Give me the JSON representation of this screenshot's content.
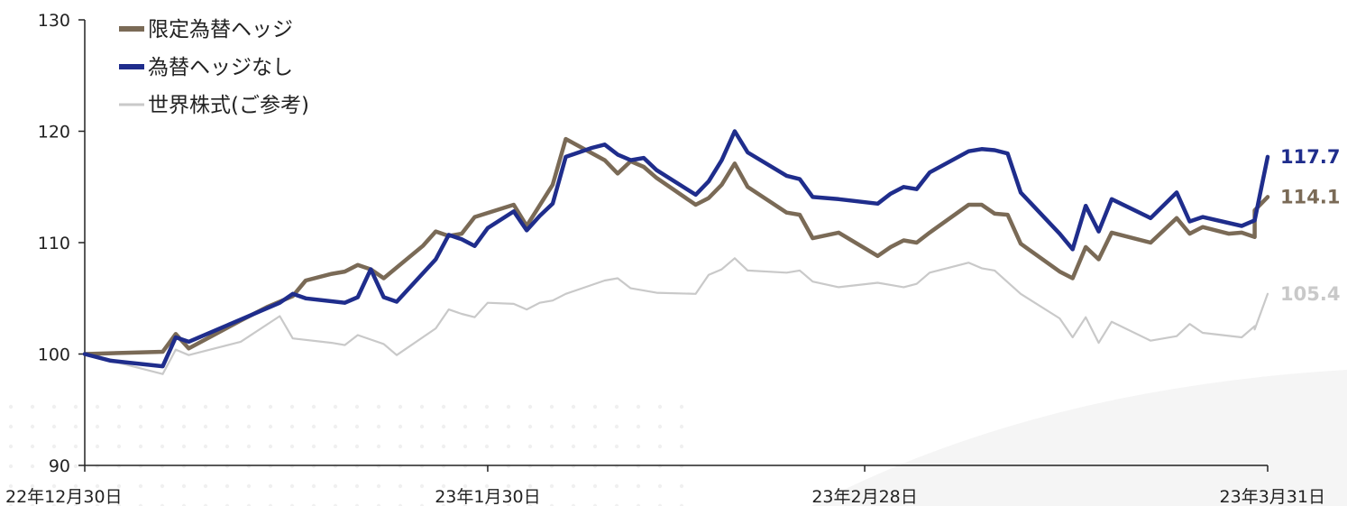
{
  "chart_data": {
    "type": "line",
    "ylim": [
      90,
      130
    ],
    "y_ticks": [
      "90",
      "100",
      "110",
      "120",
      "130"
    ],
    "x_range": [
      "2022-12-30",
      "2023-03-31"
    ],
    "x_ticks": [
      {
        "date": "2022-12-30",
        "label": "22年12月30日"
      },
      {
        "date": "2023-01-30",
        "label": "23年1月30日"
      },
      {
        "date": "2023-02-28",
        "label": "23年2月28日"
      },
      {
        "date": "2023-03-31",
        "label": "23年3月31日"
      }
    ],
    "grid": false,
    "legend_position": "top-left",
    "series": [
      {
        "name": "限定為替ヘッジ",
        "color": "#7a6a56",
        "end_label": "114.1",
        "points": [
          [
            "2022-12-30",
            100.0
          ],
          [
            "2023-01-05",
            100.2
          ],
          [
            "2023-01-06",
            101.8
          ],
          [
            "2023-01-07",
            100.5
          ],
          [
            "2023-01-11",
            103.0
          ],
          [
            "2023-01-13",
            104.2
          ],
          [
            "2023-01-15",
            105.2
          ],
          [
            "2023-01-16",
            106.6
          ],
          [
            "2023-01-18",
            107.2
          ],
          [
            "2023-01-19",
            107.4
          ],
          [
            "2023-01-20",
            108.0
          ],
          [
            "2023-01-21",
            107.6
          ],
          [
            "2023-01-22",
            106.8
          ],
          [
            "2023-01-25",
            109.7
          ],
          [
            "2023-01-26",
            111.0
          ],
          [
            "2023-01-27",
            110.6
          ],
          [
            "2023-01-28",
            110.8
          ],
          [
            "2023-01-29",
            112.3
          ],
          [
            "2023-02-01",
            113.4
          ],
          [
            "2023-02-02",
            111.5
          ],
          [
            "2023-02-04",
            115.2
          ],
          [
            "2023-02-05",
            119.3
          ],
          [
            "2023-02-08",
            117.4
          ],
          [
            "2023-02-09",
            116.2
          ],
          [
            "2023-02-10",
            117.3
          ],
          [
            "2023-02-11",
            116.8
          ],
          [
            "2023-02-12",
            115.8
          ],
          [
            "2023-02-15",
            113.4
          ],
          [
            "2023-02-16",
            114.0
          ],
          [
            "2023-02-17",
            115.2
          ],
          [
            "2023-02-18",
            117.1
          ],
          [
            "2023-02-19",
            115.0
          ],
          [
            "2023-02-22",
            112.7
          ],
          [
            "2023-02-23",
            112.5
          ],
          [
            "2023-02-24",
            110.4
          ],
          [
            "2023-02-26",
            110.9
          ],
          [
            "2023-03-01",
            108.8
          ],
          [
            "2023-03-02",
            109.6
          ],
          [
            "2023-03-03",
            110.2
          ],
          [
            "2023-03-04",
            110.0
          ],
          [
            "2023-03-05",
            110.9
          ],
          [
            "2023-03-08",
            113.4
          ],
          [
            "2023-03-09",
            113.4
          ],
          [
            "2023-03-10",
            112.6
          ],
          [
            "2023-03-11",
            112.5
          ],
          [
            "2023-03-12",
            109.9
          ],
          [
            "2023-03-15",
            107.4
          ],
          [
            "2023-03-16",
            106.8
          ],
          [
            "2023-03-17",
            109.6
          ],
          [
            "2023-03-18",
            108.5
          ],
          [
            "2023-03-19",
            110.9
          ],
          [
            "2023-03-22",
            110.0
          ],
          [
            "2023-03-24",
            112.2
          ],
          [
            "2023-03-25",
            110.8
          ],
          [
            "2023-03-26",
            111.4
          ],
          [
            "2023-03-28",
            110.8
          ],
          [
            "2023-03-29",
            110.9
          ],
          [
            "2023-03-30",
            110.5
          ],
          [
            "2023-03-30",
            112.9
          ],
          [
            "2023-03-31",
            114.1
          ]
        ]
      },
      {
        "name": "為替ヘッジなし",
        "color": "#1f2d8c",
        "end_label": "117.7",
        "points": [
          [
            "2022-12-30",
            100.0
          ],
          [
            "2023-01-01",
            99.4
          ],
          [
            "2023-01-05",
            98.9
          ],
          [
            "2023-01-06",
            101.5
          ],
          [
            "2023-01-07",
            101.1
          ],
          [
            "2023-01-10",
            102.6
          ],
          [
            "2023-01-14",
            104.6
          ],
          [
            "2023-01-15",
            105.4
          ],
          [
            "2023-01-16",
            105.0
          ],
          [
            "2023-01-19",
            104.6
          ],
          [
            "2023-01-20",
            105.1
          ],
          [
            "2023-01-21",
            107.6
          ],
          [
            "2023-01-22",
            105.1
          ],
          [
            "2023-01-23",
            104.7
          ],
          [
            "2023-01-26",
            108.5
          ],
          [
            "2023-01-27",
            110.7
          ],
          [
            "2023-01-28",
            110.3
          ],
          [
            "2023-01-29",
            109.7
          ],
          [
            "2023-01-30",
            111.3
          ],
          [
            "2023-02-01",
            112.8
          ],
          [
            "2023-02-02",
            111.1
          ],
          [
            "2023-02-03",
            112.4
          ],
          [
            "2023-02-04",
            113.5
          ],
          [
            "2023-02-05",
            117.7
          ],
          [
            "2023-02-07",
            118.5
          ],
          [
            "2023-02-08",
            118.8
          ],
          [
            "2023-02-09",
            117.9
          ],
          [
            "2023-02-10",
            117.4
          ],
          [
            "2023-02-11",
            117.6
          ],
          [
            "2023-02-12",
            116.5
          ],
          [
            "2023-02-15",
            114.3
          ],
          [
            "2023-02-16",
            115.5
          ],
          [
            "2023-02-17",
            117.4
          ],
          [
            "2023-02-18",
            120.0
          ],
          [
            "2023-02-19",
            118.1
          ],
          [
            "2023-02-22",
            116.0
          ],
          [
            "2023-02-23",
            115.7
          ],
          [
            "2023-02-24",
            114.1
          ],
          [
            "2023-02-26",
            113.9
          ],
          [
            "2023-03-01",
            113.5
          ],
          [
            "2023-03-02",
            114.4
          ],
          [
            "2023-03-03",
            115.0
          ],
          [
            "2023-03-04",
            114.8
          ],
          [
            "2023-03-05",
            116.3
          ],
          [
            "2023-03-08",
            118.2
          ],
          [
            "2023-03-09",
            118.4
          ],
          [
            "2023-03-10",
            118.3
          ],
          [
            "2023-03-11",
            118.0
          ],
          [
            "2023-03-12",
            114.5
          ],
          [
            "2023-03-15",
            110.8
          ],
          [
            "2023-03-16",
            109.4
          ],
          [
            "2023-03-17",
            113.3
          ],
          [
            "2023-03-18",
            111.0
          ],
          [
            "2023-03-19",
            113.9
          ],
          [
            "2023-03-22",
            112.2
          ],
          [
            "2023-03-24",
            114.5
          ],
          [
            "2023-03-25",
            111.9
          ],
          [
            "2023-03-26",
            112.3
          ],
          [
            "2023-03-29",
            111.5
          ],
          [
            "2023-03-30",
            112.0
          ],
          [
            "2023-03-31",
            117.7
          ]
        ]
      },
      {
        "name": "世界株式(ご参考)",
        "color": "#c9c9c9",
        "end_label": "105.4",
        "points": [
          [
            "2022-12-30",
            100.0
          ],
          [
            "2023-01-05",
            98.2
          ],
          [
            "2023-01-06",
            100.4
          ],
          [
            "2023-01-07",
            99.9
          ],
          [
            "2023-01-11",
            101.1
          ],
          [
            "2023-01-14",
            103.4
          ],
          [
            "2023-01-15",
            101.4
          ],
          [
            "2023-01-18",
            101.0
          ],
          [
            "2023-01-19",
            100.8
          ],
          [
            "2023-01-20",
            101.7
          ],
          [
            "2023-01-22",
            100.9
          ],
          [
            "2023-01-23",
            99.9
          ],
          [
            "2023-01-26",
            102.3
          ],
          [
            "2023-01-27",
            104.0
          ],
          [
            "2023-01-28",
            103.6
          ],
          [
            "2023-01-29",
            103.3
          ],
          [
            "2023-01-30",
            104.6
          ],
          [
            "2023-02-01",
            104.5
          ],
          [
            "2023-02-02",
            104.0
          ],
          [
            "2023-02-03",
            104.6
          ],
          [
            "2023-02-04",
            104.8
          ],
          [
            "2023-02-05",
            105.4
          ],
          [
            "2023-02-08",
            106.6
          ],
          [
            "2023-02-09",
            106.8
          ],
          [
            "2023-02-10",
            105.9
          ],
          [
            "2023-02-11",
            105.7
          ],
          [
            "2023-02-12",
            105.5
          ],
          [
            "2023-02-15",
            105.4
          ],
          [
            "2023-02-16",
            107.1
          ],
          [
            "2023-02-17",
            107.6
          ],
          [
            "2023-02-18",
            108.6
          ],
          [
            "2023-02-19",
            107.5
          ],
          [
            "2023-02-22",
            107.3
          ],
          [
            "2023-02-23",
            107.5
          ],
          [
            "2023-02-24",
            106.5
          ],
          [
            "2023-02-26",
            106.0
          ],
          [
            "2023-03-01",
            106.4
          ],
          [
            "2023-03-02",
            106.2
          ],
          [
            "2023-03-03",
            106.0
          ],
          [
            "2023-03-04",
            106.3
          ],
          [
            "2023-03-05",
            107.3
          ],
          [
            "2023-03-08",
            108.2
          ],
          [
            "2023-03-09",
            107.7
          ],
          [
            "2023-03-10",
            107.5
          ],
          [
            "2023-03-12",
            105.4
          ],
          [
            "2023-03-15",
            103.2
          ],
          [
            "2023-03-16",
            101.5
          ],
          [
            "2023-03-17",
            103.3
          ],
          [
            "2023-03-18",
            101.0
          ],
          [
            "2023-03-19",
            102.9
          ],
          [
            "2023-03-22",
            101.2
          ],
          [
            "2023-03-24",
            101.6
          ],
          [
            "2023-03-25",
            102.7
          ],
          [
            "2023-03-26",
            101.9
          ],
          [
            "2023-03-29",
            101.5
          ],
          [
            "2023-03-30",
            102.5
          ],
          [
            "2023-03-30",
            102.2
          ],
          [
            "2023-03-31",
            105.4
          ]
        ]
      }
    ]
  }
}
